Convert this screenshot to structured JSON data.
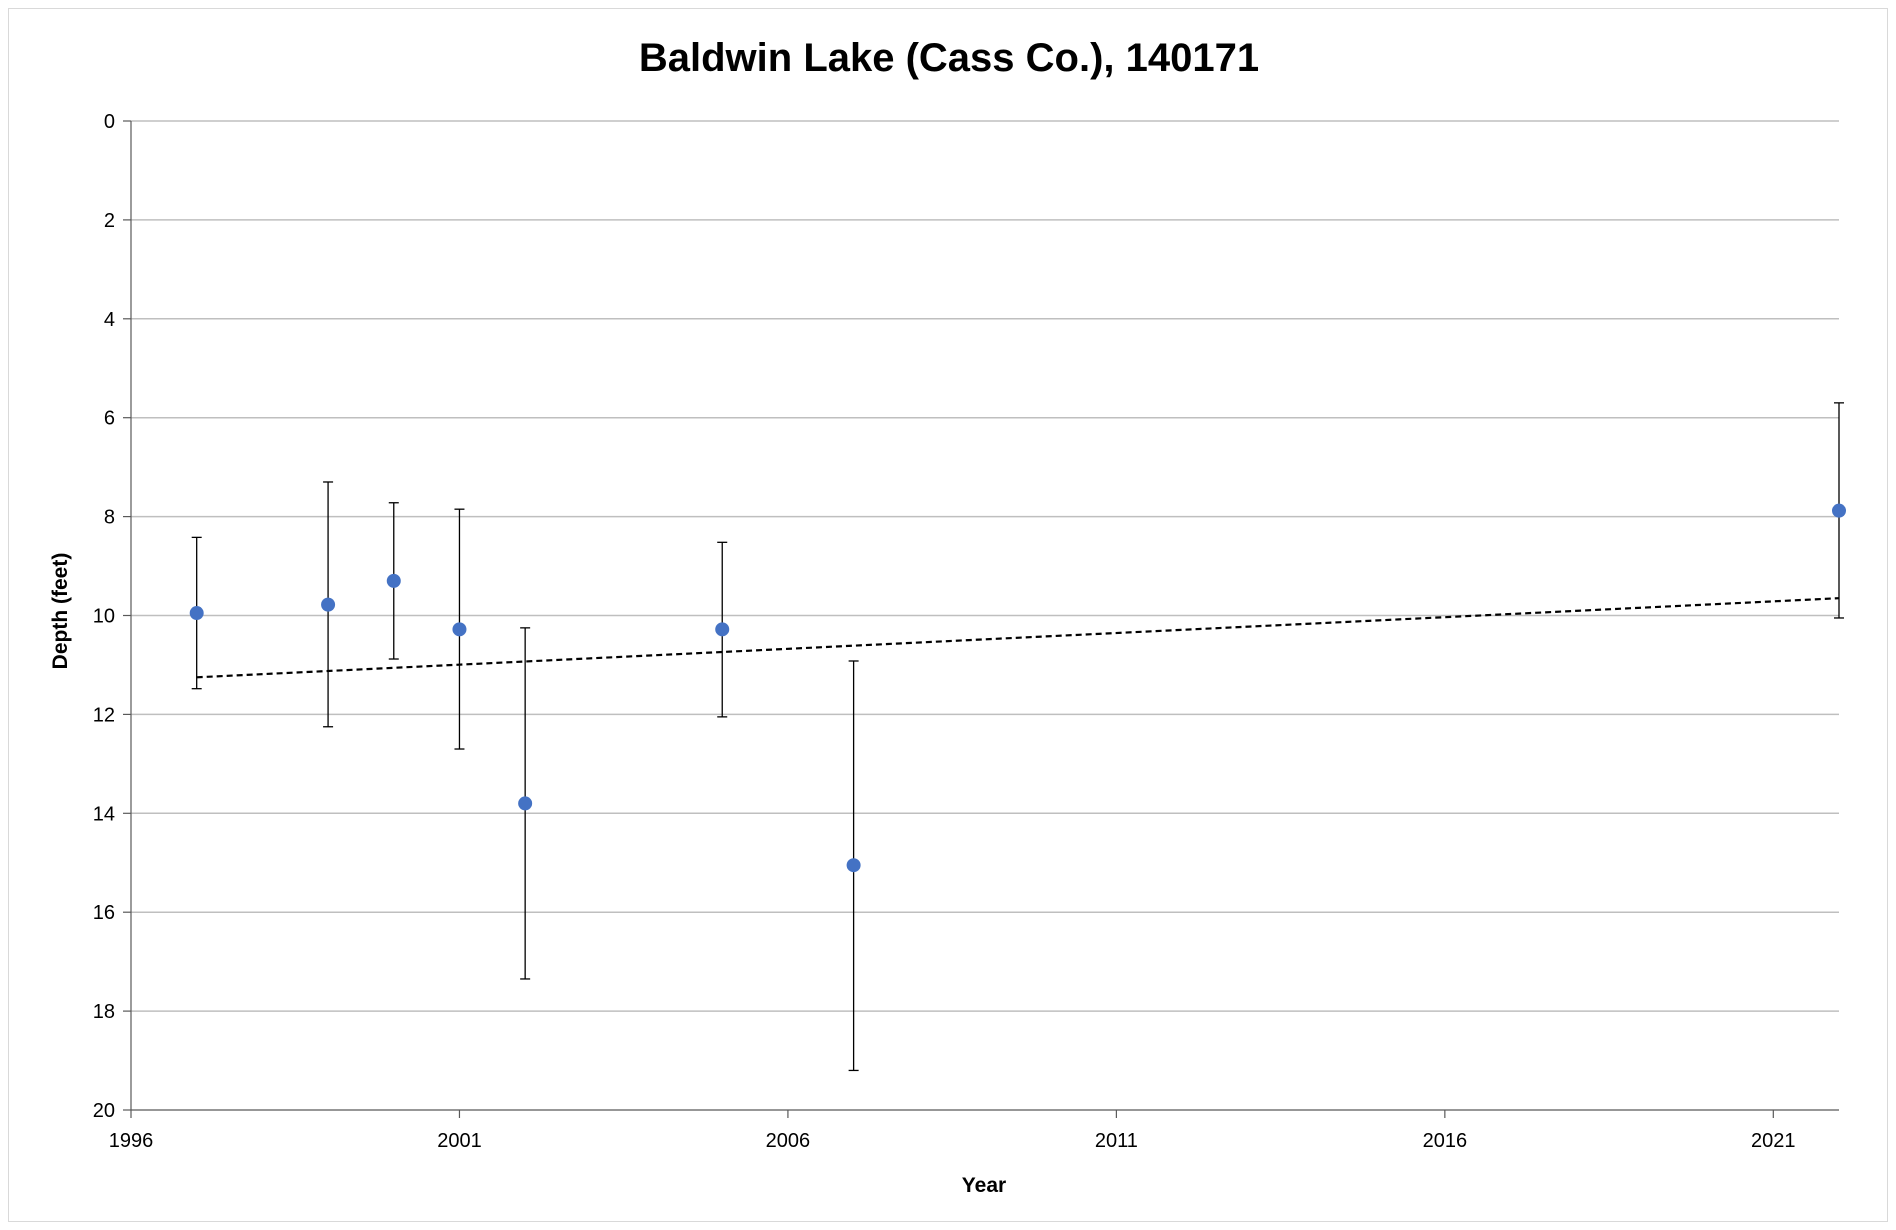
{
  "chart_data": {
    "type": "scatter",
    "title": "Baldwin Lake (Cass Co.), 140171",
    "xlabel": "Year",
    "ylabel": "Depth (feet)",
    "xlim": [
      1996,
      2022
    ],
    "ylim": [
      0,
      20
    ],
    "y_inverted": true,
    "xticks": [
      "1996",
      "2001",
      "2006",
      "2011",
      "2016",
      "2021"
    ],
    "yticks": [
      "0",
      "2",
      "4",
      "6",
      "8",
      "10",
      "12",
      "14",
      "16",
      "18",
      "20"
    ],
    "grid": "horizontal",
    "marker_color": "#4472C4",
    "series": [
      {
        "points": [
          {
            "x": 1997.0,
            "y": 9.95,
            "err_low": 8.42,
            "err_high": 11.48
          },
          {
            "x": 1999.0,
            "y": 9.78,
            "err_low": 7.3,
            "err_high": 12.25
          },
          {
            "x": 2000.0,
            "y": 9.3,
            "err_low": 7.72,
            "err_high": 10.88
          },
          {
            "x": 2001.0,
            "y": 10.28,
            "err_low": 7.85,
            "err_high": 12.7
          },
          {
            "x": 2002.0,
            "y": 13.8,
            "err_low": 10.25,
            "err_high": 17.35
          },
          {
            "x": 2005.0,
            "y": 10.28,
            "err_low": 8.52,
            "err_high": 12.05
          },
          {
            "x": 2007.0,
            "y": 15.05,
            "err_low": 10.92,
            "err_high": 19.2
          },
          {
            "x": 2022.0,
            "y": 7.88,
            "err_low": 5.7,
            "err_high": 10.05
          }
        ]
      }
    ],
    "trendline": {
      "style": "dashed",
      "x": [
        1997.0,
        2022.0
      ],
      "y": [
        11.25,
        9.65
      ]
    }
  }
}
